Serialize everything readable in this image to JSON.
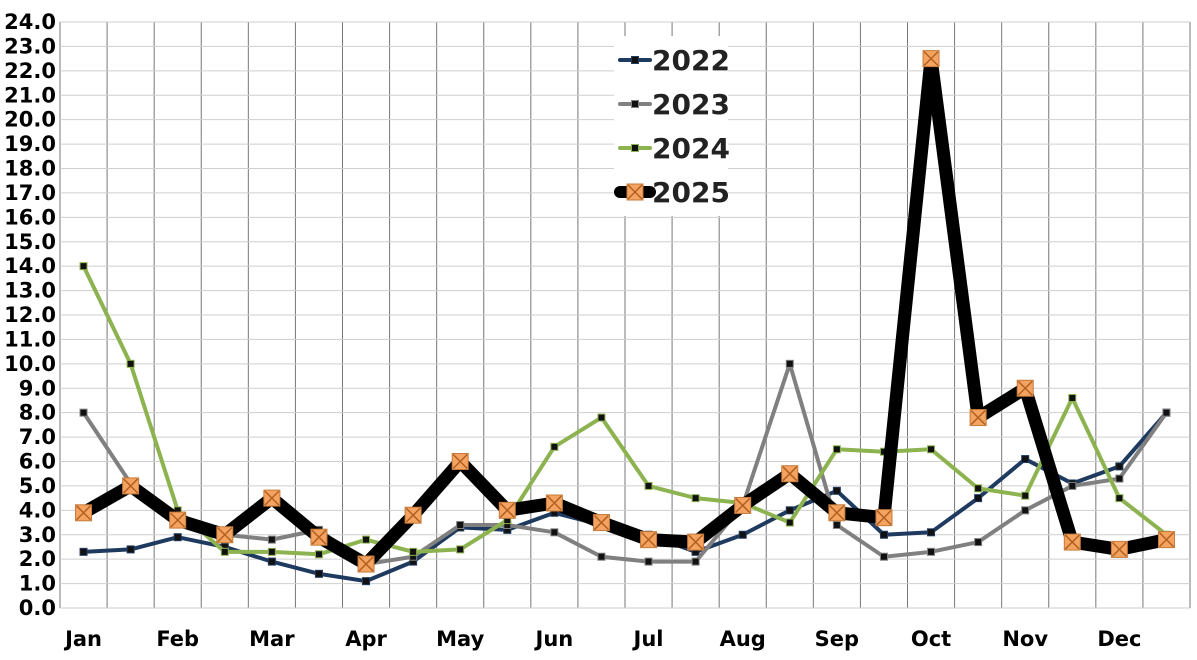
{
  "chart_data": {
    "type": "line",
    "title": "",
    "xlabel": "",
    "ylabel": "",
    "ylim": [
      0,
      24
    ],
    "y_ticks": [
      "0.0",
      "1.0",
      "2.0",
      "3.0",
      "4.0",
      "5.0",
      "6.0",
      "7.0",
      "8.0",
      "9.0",
      "10.0",
      "11.0",
      "12.0",
      "13.0",
      "14.0",
      "15.0",
      "16.0",
      "17.0",
      "18.0",
      "19.0",
      "20.0",
      "21.0",
      "22.0",
      "23.0",
      "24.0"
    ],
    "month_labels": [
      "Jan",
      "Feb",
      "Mar",
      "Apr",
      "May",
      "Jun",
      "Jul",
      "Aug",
      "Sep",
      "Oct",
      "Nov",
      "Dec"
    ],
    "points_per_month": 2,
    "grid": "vertical and horizontal",
    "legend_position": "top-center",
    "series": [
      {
        "name": "2022",
        "color": "#1F3A5F",
        "marker": "square",
        "values": [
          2.3,
          2.4,
          2.9,
          2.5,
          1.9,
          1.4,
          1.1,
          1.9,
          3.3,
          3.2,
          3.9,
          3.4,
          3.0,
          2.3,
          3.0,
          4.0,
          4.8,
          3.0,
          3.1,
          4.5,
          6.1,
          5.1,
          5.8,
          8.0
        ]
      },
      {
        "name": "2023",
        "color": "#808080",
        "marker": "square",
        "values": [
          8.0,
          5.1,
          3.8,
          3.0,
          2.8,
          3.2,
          1.8,
          2.1,
          3.4,
          3.4,
          3.1,
          2.1,
          1.9,
          1.9,
          4.2,
          10.0,
          3.4,
          2.1,
          2.3,
          2.7,
          4.0,
          5.0,
          5.3,
          8.0
        ]
      },
      {
        "name": "2024",
        "color": "#8DB350",
        "marker": "square",
        "values": [
          14.0,
          10.0,
          4.0,
          2.3,
          2.3,
          2.2,
          2.8,
          2.3,
          2.4,
          3.6,
          6.6,
          7.8,
          5.0,
          4.5,
          4.3,
          3.5,
          6.5,
          6.4,
          6.5,
          4.9,
          4.6,
          8.6,
          4.5,
          3.0
        ]
      },
      {
        "name": "2025",
        "color": "#000000",
        "marker": "x-square",
        "marker_color": "#F4A460",
        "values": [
          3.9,
          5.0,
          3.6,
          3.0,
          4.5,
          2.9,
          1.8,
          3.8,
          6.0,
          4.0,
          4.3,
          3.5,
          2.8,
          2.7,
          4.2,
          5.5,
          3.9,
          3.7,
          22.5,
          7.8,
          9.0,
          2.7,
          2.4,
          2.8
        ]
      }
    ]
  }
}
